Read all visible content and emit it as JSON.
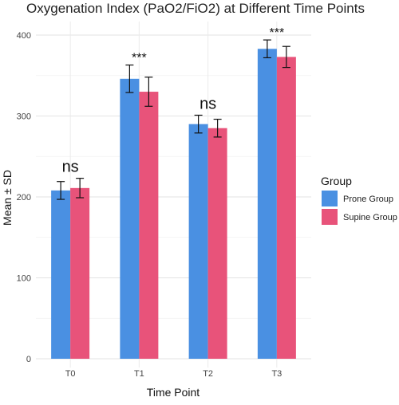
{
  "chart_data": {
    "type": "bar",
    "title": "Oxygenation Index (PaO2/FiO2) at Different Time Points",
    "xlabel": "Time Point",
    "ylabel": "Mean ± SD",
    "categories": [
      "T0",
      "T1",
      "T2",
      "T3"
    ],
    "ylim": [
      0,
      410
    ],
    "yticks": [
      0,
      100,
      200,
      300,
      400
    ],
    "grid": true,
    "legend": {
      "title": "Group",
      "position": "right"
    },
    "series": [
      {
        "name": "Prone Group",
        "color": "#4A90E2",
        "values": [
          208,
          346,
          290,
          383
        ],
        "sd": [
          11,
          17,
          11,
          11
        ]
      },
      {
        "name": "Supine Group",
        "color": "#E8537A",
        "values": [
          211,
          330,
          285,
          373
        ],
        "sd": [
          12,
          18,
          11,
          13
        ]
      }
    ],
    "annotations": [
      "ns",
      "***",
      "ns",
      "***"
    ]
  }
}
